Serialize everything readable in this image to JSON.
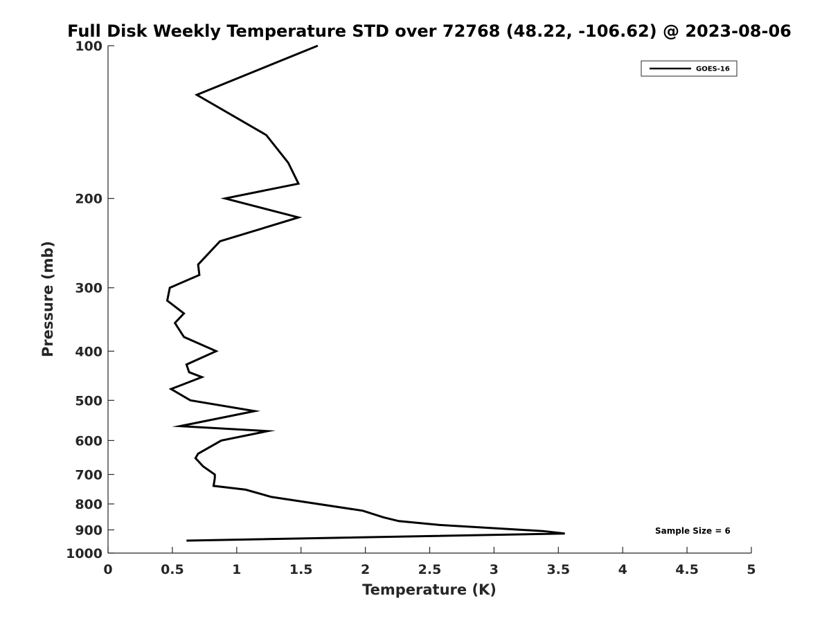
{
  "chart_data": {
    "type": "line",
    "title": "Full Disk Weekly Temperature STD over 72768 (48.22, -106.62) @ 2023-08-06",
    "xlabel": "Temperature (K)",
    "ylabel": "Pressure (mb)",
    "xlim": [
      0,
      5
    ],
    "ylim": [
      100,
      1000
    ],
    "y_scale": "log",
    "y_reversed": true,
    "x_ticks": [
      "0",
      "0.5",
      "1",
      "1.5",
      "2",
      "2.5",
      "3",
      "3.5",
      "4",
      "4.5",
      "5"
    ],
    "y_ticks": [
      "100",
      "200",
      "300",
      "400",
      "500",
      "600",
      "700",
      "800",
      "900",
      "1000"
    ],
    "grid": false,
    "legend_position": "top-right",
    "annotation": "Sample Size = 6",
    "series": [
      {
        "name": "GOES-16",
        "color": "#000000",
        "points": [
          [
            1.63,
            100
          ],
          [
            0.69,
            125
          ],
          [
            1.23,
            150
          ],
          [
            1.4,
            170
          ],
          [
            1.48,
            187
          ],
          [
            0.91,
            200
          ],
          [
            1.48,
            218
          ],
          [
            0.87,
            243
          ],
          [
            0.7,
            270
          ],
          [
            0.71,
            283
          ],
          [
            0.48,
            300
          ],
          [
            0.46,
            318
          ],
          [
            0.59,
            337
          ],
          [
            0.52,
            352
          ],
          [
            0.59,
            375
          ],
          [
            0.84,
            400
          ],
          [
            0.61,
            425
          ],
          [
            0.63,
            440
          ],
          [
            0.73,
            450
          ],
          [
            0.49,
            475
          ],
          [
            0.64,
            500
          ],
          [
            1.14,
            525
          ],
          [
            0.56,
            562
          ],
          [
            1.24,
            575
          ],
          [
            0.88,
            600
          ],
          [
            0.7,
            637
          ],
          [
            0.68,
            650
          ],
          [
            0.74,
            675
          ],
          [
            0.83,
            700
          ],
          [
            0.83,
            712
          ],
          [
            0.82,
            737
          ],
          [
            1.07,
            750
          ],
          [
            1.27,
            775
          ],
          [
            1.98,
            825
          ],
          [
            2.14,
            850
          ],
          [
            2.26,
            865
          ],
          [
            2.57,
            880
          ],
          [
            3.38,
            905
          ],
          [
            3.55,
            915
          ],
          [
            0.61,
            945
          ]
        ]
      }
    ]
  }
}
